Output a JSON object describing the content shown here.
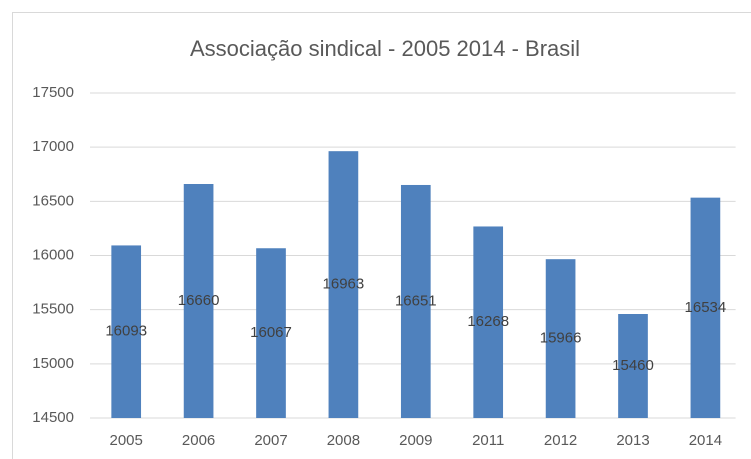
{
  "chart_data": {
    "type": "bar",
    "title": "Associação sindical - 2005 2014 - Brasil",
    "categories": [
      "2005",
      "2006",
      "2007",
      "2008",
      "2009",
      "2011",
      "2012",
      "2013",
      "2014"
    ],
    "values": [
      16093,
      16660,
      16067,
      16963,
      16651,
      16268,
      15966,
      15460,
      16534
    ],
    "color": "#4f81bd",
    "ylim": [
      14500,
      17500
    ],
    "yticks": [
      14500,
      15000,
      15500,
      16000,
      16500,
      17000,
      17500
    ],
    "grid": true
  }
}
